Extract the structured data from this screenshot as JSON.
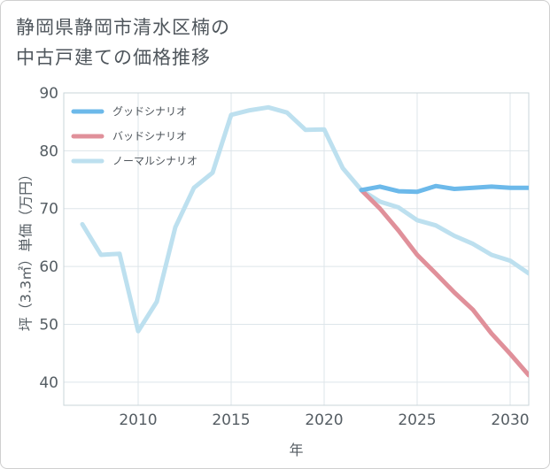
{
  "chart_data": {
    "type": "line",
    "title_lines": [
      "静岡県静岡市清水区楠の",
      "中古戸建ての価格推移"
    ],
    "xlabel": "年",
    "ylabel": "坪（3.3㎡）単価（万円）",
    "xlim": [
      2006,
      2031
    ],
    "ylim": [
      36,
      90
    ],
    "x_ticks": [
      2010,
      2015,
      2020,
      2025,
      2030
    ],
    "y_ticks": [
      40,
      50,
      60,
      70,
      80,
      90
    ],
    "grid": true,
    "legend_position": "top-left",
    "series": [
      {
        "name": "グッドシナリオ",
        "color": "#6cb9ea",
        "x": [
          2022,
          2023,
          2024,
          2025,
          2026,
          2027,
          2028,
          2029,
          2030,
          2031
        ],
        "values": [
          73.2,
          73.8,
          73.0,
          72.9,
          73.9,
          73.4,
          73.6,
          73.8,
          73.6,
          73.6
        ]
      },
      {
        "name": "バッドシナリオ",
        "color": "#e0909a",
        "x": [
          2022,
          2023,
          2024,
          2025,
          2026,
          2027,
          2028,
          2029,
          2030,
          2031
        ],
        "values": [
          73.2,
          70.0,
          66.2,
          62.0,
          58.8,
          55.5,
          52.5,
          48.4,
          44.9,
          41.2
        ]
      },
      {
        "name": "ノーマルシナリオ",
        "color": "#bde0ef",
        "x": [
          2007,
          2008,
          2009,
          2010,
          2011,
          2012,
          2013,
          2014,
          2015,
          2016,
          2017,
          2018,
          2019,
          2020,
          2021,
          2022,
          2023,
          2024,
          2025,
          2026,
          2027,
          2028,
          2029,
          2030,
          2031
        ],
        "values": [
          67.3,
          62.0,
          62.2,
          48.8,
          53.9,
          66.8,
          73.6,
          76.2,
          86.2,
          87.0,
          87.5,
          86.6,
          83.6,
          83.7,
          77.0,
          73.2,
          71.2,
          70.2,
          68.0,
          67.1,
          65.3,
          63.9,
          62.0,
          61.0,
          58.8
        ]
      }
    ]
  }
}
